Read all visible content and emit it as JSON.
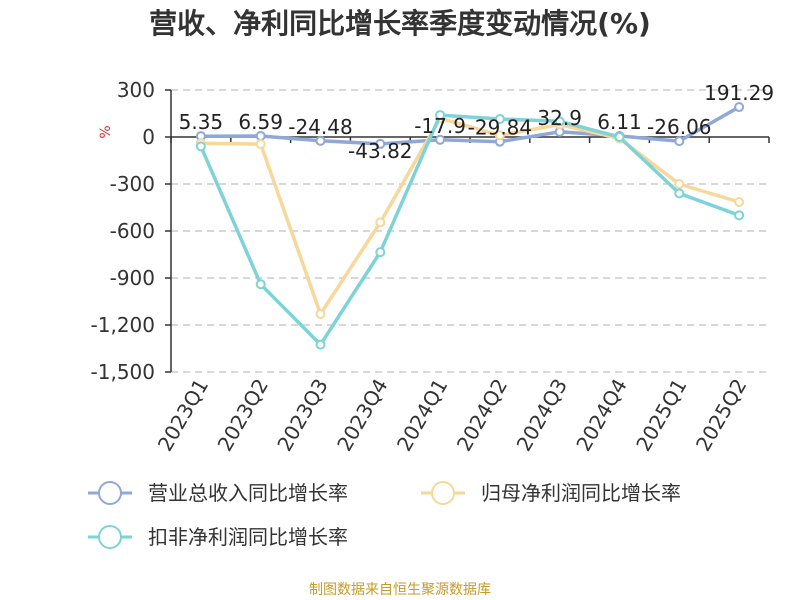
{
  "chart_data": {
    "type": "line",
    "title": "营收、净利同比增长率季度变动情况(%)",
    "ylabel": "%",
    "categories": [
      "2023Q1",
      "2023Q2",
      "2023Q3",
      "2023Q4",
      "2024Q1",
      "2024Q2",
      "2024Q3",
      "2024Q4",
      "2025Q1",
      "2025Q2"
    ],
    "ylim": [
      -1500,
      300
    ],
    "yticks": [
      300,
      0,
      -300,
      -600,
      -900,
      -1200,
      -1500
    ],
    "ytick_labels": [
      "300",
      "0",
      "-300",
      "-600",
      "-900",
      "-1,200",
      "-1,500"
    ],
    "grid": true,
    "legend_position": "bottom",
    "series": [
      {
        "name": "营业总收入同比增长率",
        "color": "#8fa8d8",
        "values": [
          5.35,
          6.59,
          -24.48,
          -43.82,
          -17.9,
          -29.84,
          32.9,
          6.11,
          -26.06,
          191.29
        ],
        "labels": [
          "5.35",
          "6.59",
          "-24.48",
          "-43.82",
          "-17.9",
          "-29.84",
          "32.9",
          "6.11",
          "-26.06",
          "191.29"
        ]
      },
      {
        "name": "归母净利润同比增长率",
        "color": "#f7d79a",
        "values": [
          -40,
          -45,
          -1130,
          -545,
          120,
          10,
          80,
          -10,
          -300,
          -415
        ]
      },
      {
        "name": "扣非净利润同比增长率",
        "color": "#7dd3d8",
        "values": [
          -60,
          -940,
          -1325,
          -735,
          140,
          115,
          100,
          0,
          -360,
          -500
        ]
      }
    ]
  },
  "footer": {
    "source": "制图数据来自恒生聚源数据库"
  }
}
